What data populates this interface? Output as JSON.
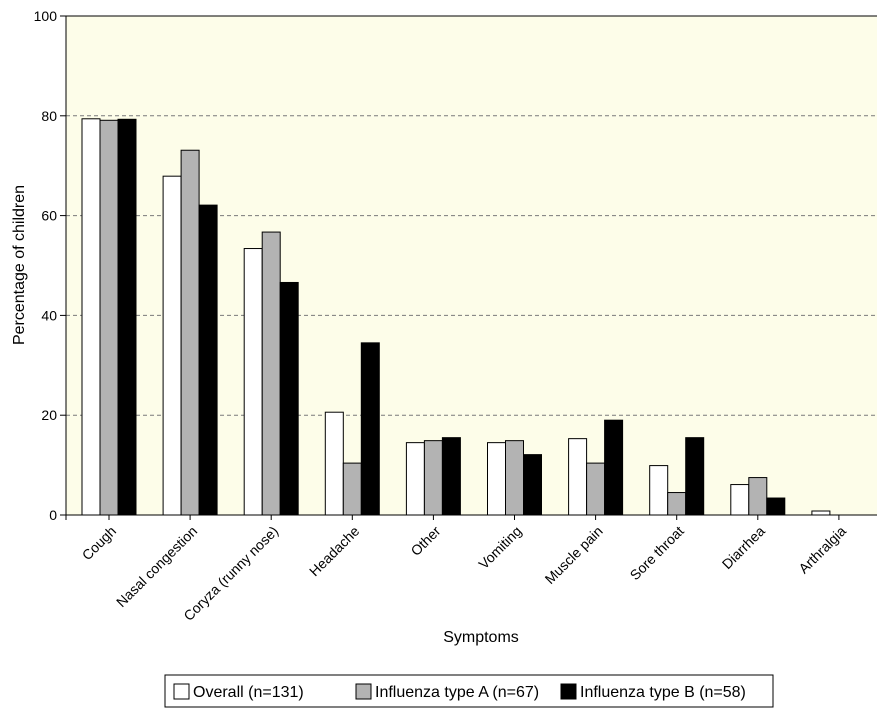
{
  "chart_data": {
    "type": "bar",
    "title": "",
    "xlabel": "Symptoms",
    "ylabel": "Percentage of children",
    "ylim": [
      0,
      100
    ],
    "yticks": [
      0,
      20,
      40,
      60,
      80,
      100
    ],
    "grid": "horizontal dashed",
    "legend_position": "bottom",
    "plot_background": "#fdfde9",
    "categories": [
      "Cough",
      "Nasal congestion",
      "Coryza (runny nose)",
      "Headache",
      "Other",
      "Vomiting",
      "Muscle pain",
      "Sore throat",
      "Diarrhea",
      "Arthralgia"
    ],
    "series": [
      {
        "name": "Overall (n=131)",
        "color": "#ffffff",
        "values": [
          79.4,
          67.9,
          53.4,
          20.6,
          14.5,
          14.5,
          15.3,
          9.9,
          6.1,
          0.8
        ]
      },
      {
        "name": "Influenza type A (n=67)",
        "color": "#b3b3b3",
        "values": [
          79.1,
          73.1,
          56.7,
          10.4,
          14.9,
          14.9,
          10.4,
          4.5,
          7.5,
          0
        ]
      },
      {
        "name": "Influenza type B (n=58)",
        "color": "#000000",
        "values": [
          79.3,
          62.1,
          46.6,
          34.5,
          15.5,
          12.1,
          19.0,
          15.5,
          3.4,
          0
        ]
      }
    ]
  }
}
